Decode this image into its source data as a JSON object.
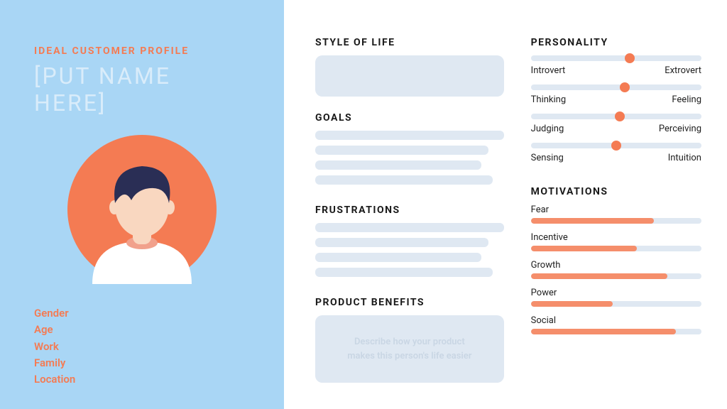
{
  "colors": {
    "panel_bg": "#a9d6f5",
    "accent": "#f47b53",
    "accent_text": "#f47b53",
    "name_color": "#d9ecfa",
    "section_title": "#1a1a1a",
    "slot_bg": "#dfe8f2",
    "benefits_text": "#c9d6e4",
    "white": "#ffffff",
    "avatar_hair": "#2a2e55",
    "avatar_skin": "#f9d7c0",
    "avatar_neck": "#f1a18c",
    "track_bg": "#dfe8f2",
    "bar_fill": "#f58e6b",
    "text_dark": "#1f1f1f"
  },
  "left": {
    "subtitle": "IDEAL CUSTOMER PROFILE",
    "name": "[PUT NAME HERE]",
    "fields": [
      "Gender",
      "Age",
      "Work",
      "Family",
      "Location"
    ]
  },
  "sections": {
    "style_of_life": {
      "title": "STYLE OF LIFE"
    },
    "goals": {
      "title": "GOALS",
      "lines": 4
    },
    "frustrations": {
      "title": "FRUSTRATIONS",
      "lines": 4
    },
    "product_benefits": {
      "title": "PRODUCT BENEFITS",
      "placeholder": "Describe how your product makes this person's life easier"
    },
    "personality": {
      "title": "PERSONALITY",
      "traits": [
        {
          "left": "Introvert",
          "right": "Extrovert",
          "value": 0.58
        },
        {
          "left": "Thinking",
          "right": "Feeling",
          "value": 0.55
        },
        {
          "left": "Judging",
          "right": "Perceiving",
          "value": 0.52
        },
        {
          "left": "Sensing",
          "right": "Intuition",
          "value": 0.5
        }
      ]
    },
    "motivations": {
      "title": "MOTIVATIONS",
      "items": [
        {
          "label": "Fear",
          "value": 0.72
        },
        {
          "label": "Incentive",
          "value": 0.62
        },
        {
          "label": "Growth",
          "value": 0.8
        },
        {
          "label": "Power",
          "value": 0.48
        },
        {
          "label": "Social",
          "value": 0.85
        }
      ]
    }
  }
}
